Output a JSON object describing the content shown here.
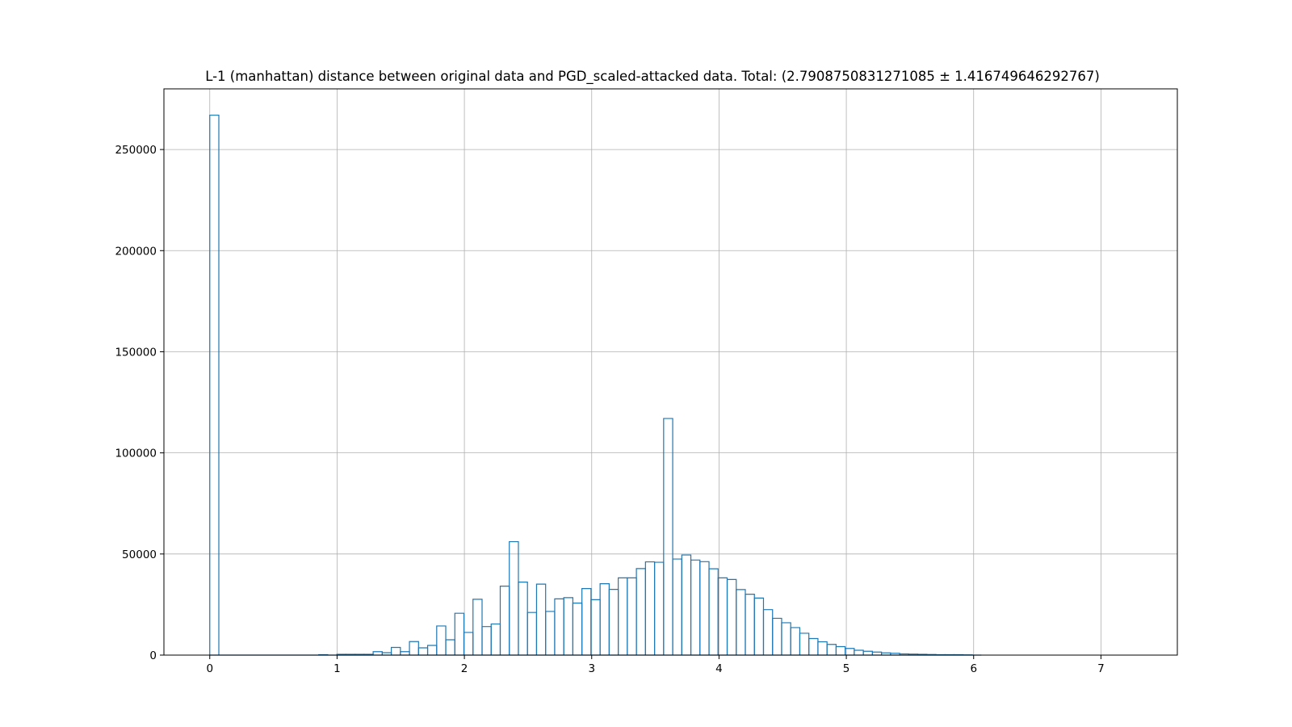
{
  "chart_data": {
    "type": "histogram",
    "histtype": "step",
    "title": "L-1 (manhattan) distance between original data and PGD_scaled-attacked data. Total: (2.7908750831271085 ± 1.416749646292767)",
    "xlabel": "",
    "ylabel": "",
    "xlim": [
      -0.36,
      7.6
    ],
    "ylim": [
      0,
      280000
    ],
    "xticks": [
      0,
      1,
      2,
      3,
      4,
      5,
      6,
      7
    ],
    "yticks": [
      0,
      50000,
      100000,
      150000,
      200000,
      250000
    ],
    "ytick_labels": [
      "0",
      "50000",
      "100000",
      "150000",
      "200000",
      "250000"
    ],
    "grid": true,
    "line_color": "#1f77b4",
    "bin_start": 0.0,
    "bin_width": 0.0713,
    "counts": [
      267000,
      0,
      0,
      0,
      0,
      0,
      0,
      0,
      0,
      0,
      0,
      0,
      200,
      0,
      400,
      400,
      400,
      400,
      1700,
      1200,
      3800,
      1700,
      6700,
      3600,
      4800,
      14400,
      7600,
      20700,
      11200,
      27600,
      14100,
      15400,
      34100,
      56100,
      36100,
      21100,
      35100,
      21600,
      27800,
      28400,
      25700,
      32900,
      27400,
      35300,
      32500,
      38200,
      38200,
      42800,
      46100,
      45900,
      117000,
      47500,
      49500,
      47000,
      46200,
      42700,
      38200,
      37400,
      32400,
      30100,
      28200,
      22500,
      18200,
      16000,
      13600,
      10800,
      8200,
      6600,
      5300,
      4200,
      3300,
      2400,
      1900,
      1500,
      1100,
      900,
      600,
      500,
      400,
      300,
      200,
      200,
      200,
      100,
      0
    ]
  }
}
